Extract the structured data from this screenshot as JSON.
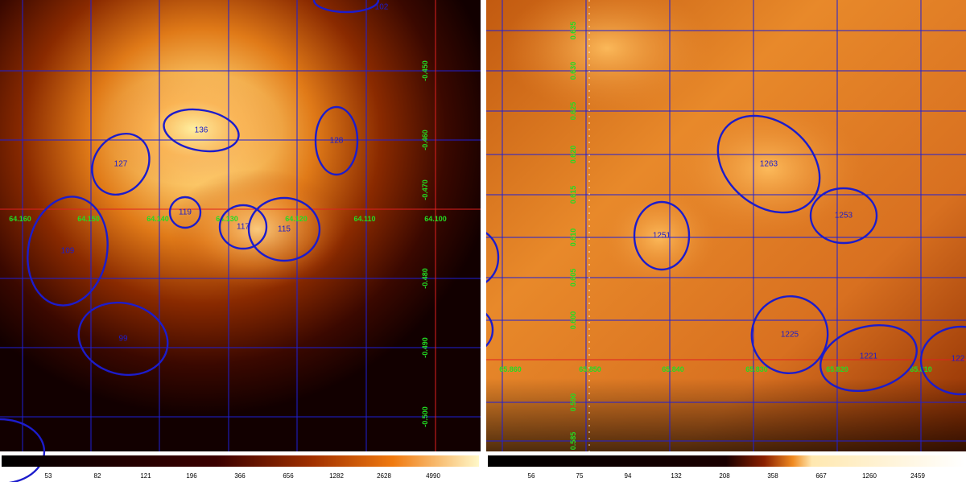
{
  "left_panel": {
    "x_axis_labels": [
      "64.160",
      "64.150",
      "64.140",
      "64.130",
      "64.120",
      "64.110",
      "64.100"
    ],
    "y_axis_labels": [
      "-0.450",
      "-0.460",
      "-0.470",
      "-0.480",
      "-0.490",
      "-0.500"
    ],
    "sources": [
      "136",
      "127",
      "128",
      "119",
      "117",
      "115",
      "109",
      "99",
      "102"
    ],
    "colorbar_ticks": [
      "53",
      "82",
      "121",
      "196",
      "366",
      "656",
      "1282",
      "2628",
      "4990"
    ]
  },
  "right_panel": {
    "x_axis_labels": [
      "65.860",
      "65.850",
      "65.840",
      "65.830",
      "65.820",
      "65.810"
    ],
    "y_axis_labels": [
      "0.635",
      "0.630",
      "0.625",
      "0.620",
      "0.615",
      "0.610",
      "0.605",
      "0.600",
      "0.590",
      "0.585"
    ],
    "sources": [
      "1263",
      "1253",
      "1251",
      "1225",
      "1221",
      "122"
    ],
    "colorbar_ticks": [
      "56",
      "75",
      "94",
      "132",
      "208",
      "358",
      "667",
      "1260",
      "2459"
    ]
  },
  "colors": {
    "grid": "#1f1fd6",
    "source_region": "#1c1ccc",
    "axis_label": "#22dd22",
    "crosshair": "#e02020"
  }
}
